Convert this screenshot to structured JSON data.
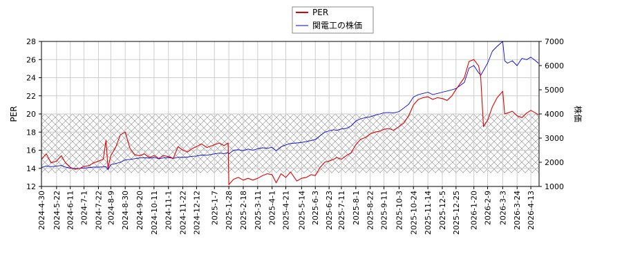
{
  "chart_data": {
    "type": "line",
    "legend": {
      "placement": "top-center",
      "entries": [
        {
          "label": "PER",
          "color": "#dd0000"
        },
        {
          "label": "関電工の株価",
          "color": "#0000dd"
        }
      ]
    },
    "ylabel_left": "PER",
    "ylabel_right": "株価",
    "ylim_left": [
      12,
      28
    ],
    "ylim_right": [
      1000,
      7000
    ],
    "yticks_left": [
      "12",
      "14",
      "16",
      "18",
      "20",
      "22",
      "24",
      "26",
      "28"
    ],
    "yticks_right": [
      "1000",
      "2000",
      "3000",
      "4000",
      "5000",
      "6000",
      "7000"
    ],
    "xlim": [
      "2024-04-30",
      "2026-04-25"
    ],
    "x_tick_labels": [
      "2024-4-30",
      "2024-5-22",
      "2024-6-11",
      "2024-7-1",
      "2024-7-22",
      "2024-8-9",
      "2024-8-30",
      "2024-9-20",
      "2024-10-11",
      "2024-11-1",
      "2024-11-22",
      "2024-12-12",
      "2025-1-7",
      "2025-1-28",
      "2025-2-18",
      "2025-3-11",
      "2025-4-1",
      "2025-4-21",
      "2025-5-14",
      "2025-6-3",
      "2025-6-23",
      "2025-7-11",
      "2025-8-1",
      "2025-8-22",
      "2025-9-11",
      "2025-10-3",
      "2025-10-24",
      "2025-11-14",
      "2025-12-5",
      "2025-12-25",
      "2026-1-20",
      "2026-2-9",
      "2026-3-3",
      "2026-3-24",
      "2026-4-13"
    ],
    "grid": true,
    "shaded_band": {
      "axis": "left",
      "from": 13.5,
      "to": 20,
      "pattern": "crosshatch"
    },
    "series": [
      {
        "name": "PER",
        "axis": "left",
        "color": "#dd0000",
        "x": [
          "2024-04-30",
          "2024-05-07",
          "2024-05-14",
          "2024-05-22",
          "2024-05-29",
          "2024-06-04",
          "2024-06-11",
          "2024-06-18",
          "2024-06-25",
          "2024-07-01",
          "2024-07-08",
          "2024-07-15",
          "2024-07-22",
          "2024-07-29",
          "2024-08-02",
          "2024-08-05",
          "2024-08-09",
          "2024-08-16",
          "2024-08-23",
          "2024-08-30",
          "2024-09-06",
          "2024-09-13",
          "2024-09-20",
          "2024-09-27",
          "2024-10-04",
          "2024-10-11",
          "2024-10-18",
          "2024-10-25",
          "2024-11-01",
          "2024-11-08",
          "2024-11-15",
          "2024-11-22",
          "2024-11-29",
          "2024-12-06",
          "2024-12-12",
          "2024-12-19",
          "2024-12-27",
          "2025-01-07",
          "2025-01-14",
          "2025-01-21",
          "2025-01-27",
          "2025-01-28",
          "2025-02-04",
          "2025-02-11",
          "2025-02-18",
          "2025-02-25",
          "2025-03-04",
          "2025-03-11",
          "2025-03-18",
          "2025-03-25",
          "2025-04-01",
          "2025-04-07",
          "2025-04-14",
          "2025-04-21",
          "2025-04-28",
          "2025-05-07",
          "2025-05-14",
          "2025-05-21",
          "2025-05-28",
          "2025-06-03",
          "2025-06-10",
          "2025-06-17",
          "2025-06-23",
          "2025-06-30",
          "2025-07-04",
          "2025-07-11",
          "2025-07-18",
          "2025-07-25",
          "2025-08-01",
          "2025-08-08",
          "2025-08-15",
          "2025-08-22",
          "2025-08-29",
          "2025-09-05",
          "2025-09-11",
          "2025-09-18",
          "2025-09-25",
          "2025-10-03",
          "2025-10-10",
          "2025-10-17",
          "2025-10-24",
          "2025-10-31",
          "2025-11-07",
          "2025-11-14",
          "2025-11-21",
          "2025-11-28",
          "2025-12-05",
          "2025-12-12",
          "2025-12-19",
          "2025-12-25",
          "2026-01-06",
          "2026-01-13",
          "2026-01-20",
          "2026-01-27",
          "2026-01-30",
          "2026-02-03",
          "2026-02-09",
          "2026-02-16",
          "2026-02-23",
          "2026-03-03",
          "2026-03-06",
          "2026-03-10",
          "2026-03-17",
          "2026-03-24",
          "2026-03-31",
          "2026-04-07",
          "2026-04-13",
          "2026-04-20",
          "2026-04-24"
        ],
        "values": [
          15.0,
          15.6,
          14.6,
          14.8,
          15.4,
          14.6,
          14.1,
          13.9,
          14.0,
          14.2,
          14.3,
          14.6,
          14.8,
          15.0,
          17.1,
          14.0,
          15.4,
          16.3,
          17.7,
          18.0,
          16.2,
          15.5,
          15.4,
          15.6,
          15.2,
          15.4,
          15.1,
          15.4,
          15.3,
          15.1,
          16.4,
          16.0,
          15.8,
          16.2,
          16.4,
          16.7,
          16.3,
          16.6,
          16.8,
          16.5,
          16.8,
          12.2,
          12.8,
          13.0,
          12.7,
          12.9,
          12.7,
          12.9,
          13.2,
          13.4,
          13.3,
          12.4,
          13.4,
          13.0,
          13.6,
          12.6,
          12.9,
          13.0,
          13.3,
          13.2,
          14.1,
          14.7,
          14.8,
          15.0,
          15.2,
          15.0,
          15.4,
          15.7,
          16.6,
          17.2,
          17.4,
          17.8,
          18.0,
          18.1,
          18.3,
          18.4,
          18.2,
          18.6,
          19.0,
          19.8,
          21.0,
          21.6,
          21.8,
          21.9,
          21.6,
          21.8,
          21.7,
          21.5,
          22.0,
          22.7,
          24.0,
          25.8,
          26.0,
          25.3,
          24.0,
          18.6,
          19.3,
          20.8,
          21.8,
          22.5,
          20.0,
          20.1,
          20.3,
          19.8,
          19.6,
          20.1,
          20.4,
          20.1,
          19.9
        ]
      },
      {
        "name": "関電工の株価",
        "axis": "right",
        "color": "#0000dd",
        "x": [
          "2024-04-30",
          "2024-05-07",
          "2024-05-14",
          "2024-05-22",
          "2024-05-29",
          "2024-06-04",
          "2024-06-11",
          "2024-06-18",
          "2024-06-25",
          "2024-07-01",
          "2024-07-08",
          "2024-07-15",
          "2024-07-22",
          "2024-07-29",
          "2024-08-02",
          "2024-08-05",
          "2024-08-09",
          "2024-08-16",
          "2024-08-23",
          "2024-08-30",
          "2024-09-06",
          "2024-09-13",
          "2024-09-20",
          "2024-09-27",
          "2024-10-04",
          "2024-10-11",
          "2024-10-18",
          "2024-10-25",
          "2024-11-01",
          "2024-11-08",
          "2024-11-15",
          "2024-11-22",
          "2024-11-29",
          "2024-12-06",
          "2024-12-12",
          "2024-12-19",
          "2024-12-27",
          "2025-01-07",
          "2025-01-14",
          "2025-01-21",
          "2025-01-27",
          "2025-01-28",
          "2025-02-04",
          "2025-02-11",
          "2025-02-18",
          "2025-02-25",
          "2025-03-04",
          "2025-03-11",
          "2025-03-18",
          "2025-03-25",
          "2025-04-01",
          "2025-04-07",
          "2025-04-14",
          "2025-04-21",
          "2025-04-28",
          "2025-05-07",
          "2025-05-14",
          "2025-05-21",
          "2025-05-28",
          "2025-06-03",
          "2025-06-10",
          "2025-06-17",
          "2025-06-23",
          "2025-06-30",
          "2025-07-04",
          "2025-07-11",
          "2025-07-18",
          "2025-07-25",
          "2025-08-01",
          "2025-08-08",
          "2025-08-15",
          "2025-08-22",
          "2025-08-29",
          "2025-09-05",
          "2025-09-11",
          "2025-09-18",
          "2025-09-25",
          "2025-10-03",
          "2025-10-10",
          "2025-10-17",
          "2025-10-24",
          "2025-10-31",
          "2025-11-07",
          "2025-11-14",
          "2025-11-21",
          "2025-11-28",
          "2025-12-05",
          "2025-12-12",
          "2025-12-19",
          "2025-12-25",
          "2026-01-06",
          "2026-01-13",
          "2026-01-20",
          "2026-01-27",
          "2026-01-30",
          "2026-02-03",
          "2026-02-09",
          "2026-02-16",
          "2026-02-23",
          "2026-03-03",
          "2026-03-06",
          "2026-03-10",
          "2026-03-17",
          "2026-03-24",
          "2026-03-31",
          "2026-04-07",
          "2026-04-13",
          "2026-04-20",
          "2026-04-24"
        ],
        "values": [
          1780,
          1850,
          1820,
          1840,
          1870,
          1800,
          1760,
          1740,
          1750,
          1760,
          1780,
          1800,
          1800,
          1810,
          1820,
          1700,
          1900,
          1950,
          2000,
          2100,
          2120,
          2150,
          2180,
          2190,
          2170,
          2200,
          2150,
          2180,
          2200,
          2160,
          2210,
          2200,
          2220,
          2250,
          2260,
          2300,
          2290,
          2350,
          2380,
          2360,
          2400,
          2350,
          2500,
          2520,
          2480,
          2550,
          2500,
          2560,
          2600,
          2580,
          2620,
          2480,
          2640,
          2720,
          2780,
          2800,
          2820,
          2860,
          2900,
          2940,
          3100,
          3250,
          3300,
          3350,
          3320,
          3380,
          3400,
          3500,
          3700,
          3800,
          3850,
          3880,
          3950,
          4000,
          4050,
          4060,
          4040,
          4100,
          4250,
          4400,
          4700,
          4800,
          4850,
          4900,
          4800,
          4850,
          4900,
          4950,
          5000,
          5050,
          5300,
          5900,
          6000,
          5700,
          5600,
          5800,
          6100,
          6600,
          6800,
          7000,
          6200,
          6100,
          6200,
          6000,
          6300,
          6250,
          6350,
          6200,
          6100
        ]
      }
    ]
  }
}
